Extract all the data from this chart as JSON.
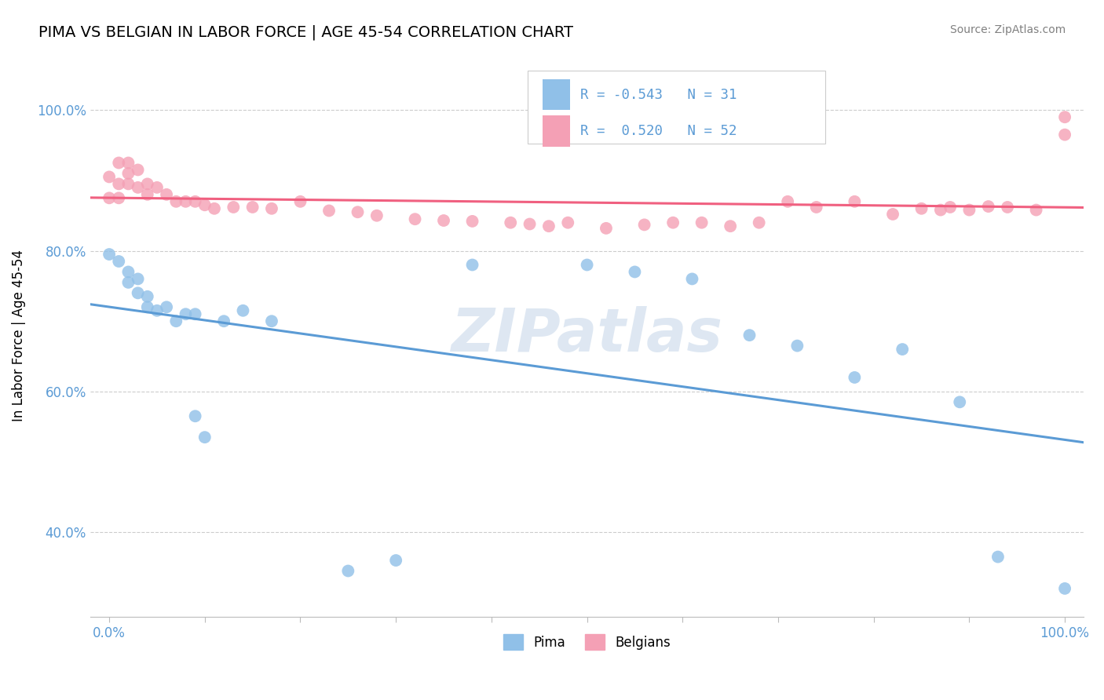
{
  "title": "PIMA VS BELGIAN IN LABOR FORCE | AGE 45-54 CORRELATION CHART",
  "source_text": "Source: ZipAtlas.com",
  "ylabel": "In Labor Force | Age 45-54",
  "xlim": [
    -0.02,
    1.02
  ],
  "ylim": [
    0.28,
    1.08
  ],
  "pima_color": "#90C0E8",
  "belgian_color": "#F4A0B5",
  "pima_line_color": "#5B9BD5",
  "belgian_line_color": "#F06080",
  "watermark_color": "#C8D8EA",
  "pima_R": -0.543,
  "pima_N": 31,
  "belgian_R": 0.52,
  "belgian_N": 52,
  "legend_text_color": "#5B9BD5",
  "grid_color": "#CCCCCC",
  "tick_label_color": "#5B9BD5",
  "pima_points_x": [
    0.0,
    0.01,
    0.02,
    0.02,
    0.03,
    0.03,
    0.04,
    0.04,
    0.05,
    0.06,
    0.07,
    0.08,
    0.09,
    0.12,
    0.14,
    0.17,
    0.09,
    0.1,
    0.25,
    0.3,
    0.38,
    0.5,
    0.55,
    0.61,
    0.67,
    0.72,
    0.78,
    0.83,
    0.89,
    0.93,
    1.0
  ],
  "pima_points_y": [
    0.795,
    0.785,
    0.77,
    0.755,
    0.76,
    0.74,
    0.735,
    0.72,
    0.715,
    0.72,
    0.7,
    0.71,
    0.71,
    0.7,
    0.715,
    0.7,
    0.565,
    0.535,
    0.345,
    0.36,
    0.78,
    0.78,
    0.77,
    0.76,
    0.68,
    0.665,
    0.62,
    0.66,
    0.585,
    0.365,
    0.32
  ],
  "belgian_points_x": [
    0.0,
    0.0,
    0.01,
    0.01,
    0.01,
    0.02,
    0.02,
    0.02,
    0.03,
    0.03,
    0.04,
    0.04,
    0.05,
    0.06,
    0.07,
    0.08,
    0.09,
    0.1,
    0.11,
    0.13,
    0.15,
    0.17,
    0.2,
    0.23,
    0.26,
    0.28,
    0.32,
    0.35,
    0.38,
    0.42,
    0.44,
    0.46,
    0.48,
    0.52,
    0.56,
    0.59,
    0.62,
    0.65,
    0.68,
    0.71,
    0.74,
    0.78,
    0.82,
    0.85,
    0.87,
    0.88,
    0.9,
    0.92,
    0.94,
    0.97,
    1.0,
    1.0
  ],
  "belgian_points_y": [
    0.905,
    0.875,
    0.925,
    0.895,
    0.875,
    0.925,
    0.91,
    0.895,
    0.915,
    0.89,
    0.895,
    0.88,
    0.89,
    0.88,
    0.87,
    0.87,
    0.87,
    0.865,
    0.86,
    0.862,
    0.862,
    0.86,
    0.87,
    0.857,
    0.855,
    0.85,
    0.845,
    0.843,
    0.842,
    0.84,
    0.838,
    0.835,
    0.84,
    0.832,
    0.837,
    0.84,
    0.84,
    0.835,
    0.84,
    0.87,
    0.862,
    0.87,
    0.852,
    0.86,
    0.858,
    0.862,
    0.858,
    0.863,
    0.862,
    0.858,
    0.965,
    0.99
  ]
}
